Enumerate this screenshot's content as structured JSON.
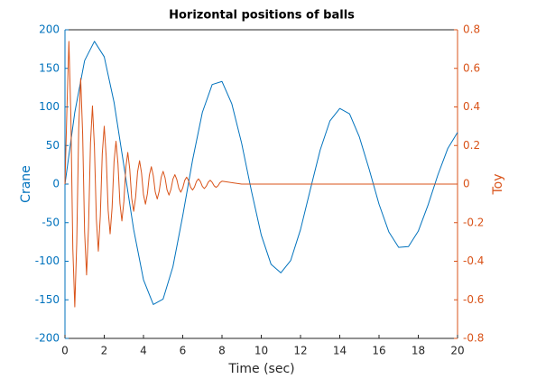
{
  "chart_data": {
    "type": "line",
    "title": "Horizontal positions of balls",
    "xlabel": "Time (sec)",
    "ylabel": "Crane",
    "y2label": "Toy",
    "xlim": [
      0,
      20
    ],
    "xticks": [
      0,
      2,
      4,
      6,
      8,
      10,
      12,
      14,
      16,
      18,
      20
    ],
    "ylim": [
      -200,
      200
    ],
    "yticks": [
      -200,
      -150,
      -100,
      -50,
      0,
      50,
      100,
      150,
      200
    ],
    "y2lim": [
      -0.8,
      0.8
    ],
    "y2ticks": [
      -0.8,
      -0.6,
      -0.4,
      -0.2,
      0,
      0.2,
      0.4,
      0.6,
      0.8
    ],
    "grid": false,
    "series": [
      {
        "color": "#0072BD",
        "axis": "y",
        "x": [
          0,
          0.5,
          1,
          1.5,
          2,
          2.5,
          3,
          3.5,
          4,
          4.5,
          5,
          5.5,
          6,
          6.5,
          7,
          7.5,
          8,
          8.5,
          9,
          9.5,
          10,
          10.5,
          11,
          11.5,
          12,
          12.5,
          13,
          13.5,
          14,
          14.5,
          15,
          15.5,
          16,
          16.5,
          17,
          17.5,
          18,
          18.5,
          19,
          19.5,
          20
        ],
        "values": [
          0,
          93,
          160,
          185,
          165,
          106,
          24,
          -59,
          -124,
          -156,
          -149,
          -107,
          -41,
          31,
          93,
          129,
          133,
          104,
          53,
          -9,
          -66,
          -104,
          -115,
          -99,
          -59,
          -7,
          44,
          82,
          98,
          91,
          61,
          19,
          -26,
          -62,
          -82,
          -81,
          -61,
          -27,
          12,
          46,
          67
        ]
      },
      {
        "color": "#D95319",
        "axis": "y2",
        "x": [
          0,
          0.1,
          0.2,
          0.3,
          0.4,
          0.5,
          0.6,
          0.7,
          0.8,
          0.9,
          1.0,
          1.1,
          1.2,
          1.3,
          1.4,
          1.5,
          1.6,
          1.7,
          1.8,
          1.9,
          2.0,
          2.1,
          2.2,
          2.3,
          2.4,
          2.5,
          2.6,
          2.7,
          2.8,
          2.9,
          3.0,
          3.1,
          3.2,
          3.3,
          3.4,
          3.5,
          3.6,
          3.7,
          3.8,
          3.9,
          4.0,
          4.1,
          4.2,
          4.3,
          4.4,
          4.5,
          4.6,
          4.7,
          4.8,
          4.9,
          5.0,
          5.1,
          5.2,
          5.3,
          5.4,
          5.5,
          5.6,
          5.7,
          5.8,
          5.9,
          6.0,
          6.1,
          6.2,
          6.3,
          6.4,
          6.5,
          6.6,
          6.7,
          6.8,
          6.9,
          7.0,
          7.1,
          7.2,
          7.3,
          7.4,
          7.5,
          7.6,
          7.7,
          7.8,
          7.9,
          8.0,
          9,
          12,
          16,
          20
        ],
        "values": [
          0,
          0.39,
          0.74,
          0.352,
          -0.335,
          -0.637,
          -0.303,
          0.288,
          0.548,
          0.261,
          -0.248,
          -0.471,
          -0.224,
          0.213,
          0.405,
          0.193,
          -0.183,
          -0.348,
          -0.166,
          0.158,
          0.3,
          0.143,
          -0.136,
          -0.258,
          -0.123,
          0.117,
          0.222,
          0.106,
          -0.1,
          -0.191,
          -0.091,
          0.086,
          0.164,
          0.078,
          -0.074,
          -0.141,
          -0.067,
          0.064,
          0.121,
          0.058,
          -0.055,
          -0.104,
          -0.05,
          0.047,
          0.09,
          0.043,
          -0.041,
          -0.077,
          -0.037,
          0.035,
          0.066,
          0.032,
          -0.03,
          -0.057,
          -0.027,
          0.026,
          0.049,
          0.023,
          -0.022,
          -0.042,
          -0.02,
          0.019,
          0.036,
          0.017,
          -0.016,
          -0.031,
          -0.015,
          0.014,
          0.027,
          0.013,
          -0.012,
          -0.023,
          -0.011,
          0.01,
          0.02,
          0.009,
          -0.009,
          -0.017,
          -0.008,
          0.008,
          0.015,
          0,
          0,
          0,
          0
        ]
      }
    ]
  }
}
